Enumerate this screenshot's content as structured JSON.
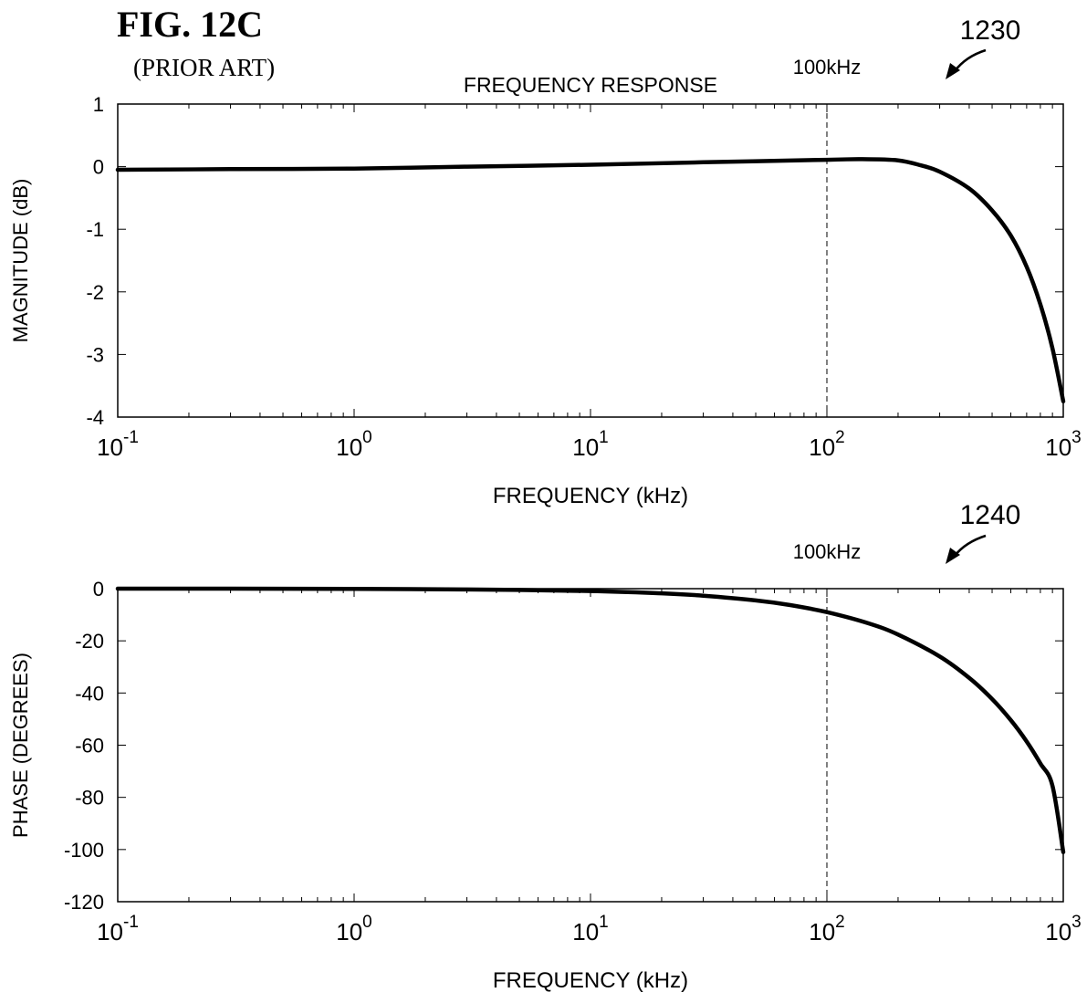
{
  "figure": {
    "title": "FIG. 12C",
    "subtitle": "(PRIOR ART)"
  },
  "chart_data": [
    {
      "type": "line",
      "ref": "1230",
      "title": "FREQUENCY RESPONSE",
      "xlabel": "FREQUENCY (kHz)",
      "ylabel": "MAGNITUDE (dB)",
      "xscale": "log",
      "xlim": [
        0.1,
        1000
      ],
      "ylim": [
        -4,
        1
      ],
      "xticks": [
        {
          "base": "10",
          "exp": "-1",
          "value": 0.1
        },
        {
          "base": "10",
          "exp": "0",
          "value": 1
        },
        {
          "base": "10",
          "exp": "1",
          "value": 10
        },
        {
          "base": "10",
          "exp": "2",
          "value": 100
        },
        {
          "base": "10",
          "exp": "3",
          "value": 1000
        }
      ],
      "yticks": [
        "1",
        "0",
        "-1",
        "-2",
        "-3",
        "-4"
      ],
      "marker": {
        "x": 100,
        "label": "100kHz"
      },
      "series": [
        {
          "x": [
            0.1,
            0.3,
            1,
            3,
            10,
            30,
            100,
            140,
            200,
            250,
            300,
            400,
            500,
            600,
            700,
            800,
            900,
            1000
          ],
          "y": [
            -0.05,
            -0.04,
            -0.03,
            0.0,
            0.03,
            0.07,
            0.11,
            0.12,
            0.1,
            0.02,
            -0.08,
            -0.35,
            -0.7,
            -1.1,
            -1.6,
            -2.2,
            -2.9,
            -3.75
          ]
        }
      ],
      "grid": false
    },
    {
      "type": "line",
      "ref": "1240",
      "title": "",
      "xlabel": "FREQUENCY (kHz)",
      "ylabel": "PHASE (DEGREES)",
      "xscale": "log",
      "xlim": [
        0.1,
        1000
      ],
      "ylim": [
        -120,
        0
      ],
      "xticks": [
        {
          "base": "10",
          "exp": "-1",
          "value": 0.1
        },
        {
          "base": "10",
          "exp": "0",
          "value": 1
        },
        {
          "base": "10",
          "exp": "1",
          "value": 10
        },
        {
          "base": "10",
          "exp": "2",
          "value": 100
        },
        {
          "base": "10",
          "exp": "3",
          "value": 1000
        }
      ],
      "yticks": [
        "0",
        "-20",
        "-40",
        "-60",
        "-80",
        "-100",
        "-120"
      ],
      "marker": {
        "x": 100,
        "label": "100kHz"
      },
      "series": [
        {
          "x": [
            0.1,
            0.3,
            1,
            3,
            10,
            20,
            30,
            50,
            70,
            100,
            150,
            200,
            300,
            400,
            500,
            600,
            700,
            800,
            900,
            1000
          ],
          "y": [
            0,
            0,
            -0.1,
            -0.3,
            -0.9,
            -1.8,
            -2.7,
            -4.5,
            -6.3,
            -9,
            -13.3,
            -17.6,
            -26,
            -34.2,
            -42.3,
            -50.4,
            -58.6,
            -67,
            -75.5,
            -101
          ]
        }
      ],
      "grid": false
    }
  ]
}
